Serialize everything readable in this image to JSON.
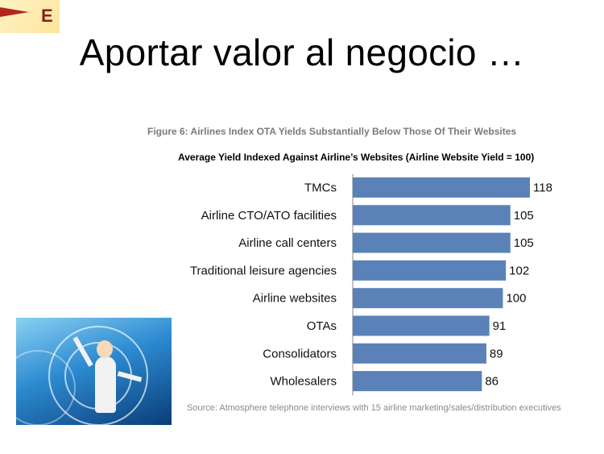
{
  "logo": {
    "letter": "E"
  },
  "slide": {
    "title": "Aportar valor al negocio …"
  },
  "chart_data": {
    "type": "bar",
    "orientation": "horizontal",
    "figure_caption": "Figure 6: Airlines Index OTA Yields Substantially Below Those Of Their Websites",
    "subtitle": "Average Yield Indexed Against Airline’s Websites (Airline Website Yield = 100)",
    "categories": [
      "TMCs",
      "Airline CTO/ATO facilities",
      "Airline call centers",
      "Traditional leisure agencies",
      "Airline websites",
      "OTAs",
      "Consolidators",
      "Wholesalers"
    ],
    "values": [
      118,
      105,
      105,
      102,
      100,
      91,
      89,
      86
    ],
    "bar_color": "#5a82b8",
    "source": "Source: Atmosphere telephone interviews with 15 airline marketing/sales/distribution executives",
    "grid": false,
    "xlim": [
      0,
      118
    ]
  }
}
